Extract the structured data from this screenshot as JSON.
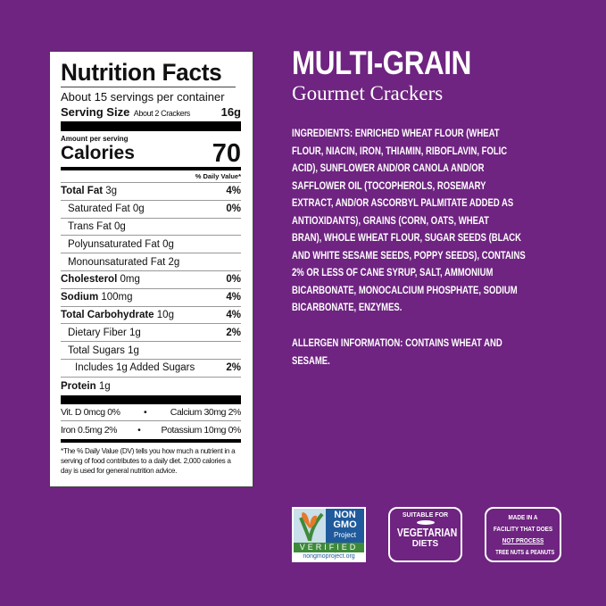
{
  "colors": {
    "background": "#6e2480",
    "panel": "#ffffff",
    "text": "#ffffff",
    "ngo_green": "#3e8a3a",
    "ngo_blue": "#1f5a9c"
  },
  "nutrition": {
    "title": "Nutrition Facts",
    "servings": "About 15 servings per container",
    "serving_size_label": "Serving Size",
    "serving_size_desc": "About 2 Crackers",
    "serving_size_value": "16g",
    "amount_per_serving": "Amount per serving",
    "calories_label": "Calories",
    "calories_value": "70",
    "dv_header": "% Daily Value*",
    "rows": [
      {
        "label": "Total Fat",
        "amount": "3g",
        "dv": "4%"
      },
      {
        "label": "Saturated Fat",
        "amount": "0g",
        "dv": "0%"
      },
      {
        "label": "Trans Fat",
        "amount": "0g",
        "dv": ""
      },
      {
        "label": "Polyunsaturated Fat",
        "amount": "0g",
        "dv": ""
      },
      {
        "label": "Monounsaturated Fat",
        "amount": "2g",
        "dv": ""
      },
      {
        "label": "Cholesterol",
        "amount": "0mg",
        "dv": "0%"
      },
      {
        "label": "Sodium",
        "amount": "100mg",
        "dv": "4%"
      },
      {
        "label": "Total Carbohydrate",
        "amount": "10g",
        "dv": "4%"
      },
      {
        "label": "Dietary Fiber",
        "amount": "1g",
        "dv": "2%"
      },
      {
        "label": "Total Sugars",
        "amount": "1g",
        "dv": ""
      },
      {
        "label": "Includes 1g Added Sugars",
        "amount": "",
        "dv": "2%"
      },
      {
        "label": "Protein",
        "amount": "1g",
        "dv": ""
      }
    ],
    "vitd": "Vit. D 0mcg 0%",
    "calcium": "Calcium 30mg 2%",
    "iron": "Iron 0.5mg 2%",
    "potassium": "Potassium 10mg 0%",
    "bullet": "•",
    "footnote": "*The % Daily Value (DV) tells you how much a nutrient in a serving of food contributes to a daily diet. 2,000 calories a day is used for general nutrition advice."
  },
  "product": {
    "name": "MULTI-GRAIN",
    "subtitle": "Gourmet Crackers"
  },
  "ingredients_lines": [
    "INGREDIENTS: ENRICHED WHEAT FLOUR (WHEAT",
    "FLOUR, NIACIN, IRON, THIAMIN, RIBOFLAVIN, FOLIC",
    "ACID), SUNFLOWER AND/OR CANOLA AND/OR",
    "SAFFLOWER OIL (TOCOPHEROLS, ROSEMARY",
    "EXTRACT, AND/OR ASCORBYL PALMITATE ADDED AS",
    "ANTIOXIDANTS), GRAINS (CORN, OATS, WHEAT",
    "BRAN), WHOLE WHEAT FLOUR, SUGAR SEEDS (BLACK",
    "AND WHITE SESAME SEEDS, POPPY SEEDS), CONTAINS",
    "2% OR LESS OF CANE SYRUP, SALT, AMMONIUM",
    "BICARBONATE, MONOCALCIUM PHOSPHATE, SODIUM",
    "BICARBONATE, ENZYMES."
  ],
  "allergen_lines": [
    "ALLERGEN INFORMATION: CONTAINS WHEAT AND",
    "SESAME."
  ],
  "badges": {
    "nongmo": {
      "l1": "NON",
      "l2": "GMO",
      "l3": "Project",
      "verified": "VERIFIED",
      "url": "nongmoproject.org",
      "icon": "butterfly-icon"
    },
    "vegetarian": {
      "top": "SUITABLE FOR",
      "main": "VEGETARIAN",
      "bottom": "DIETS"
    },
    "facility": {
      "l1": "MADE IN A",
      "l2": "FACILITY THAT DOES",
      "l3": "NOT PROCESS",
      "l4": "TREE NUTS & PEANUTS"
    }
  }
}
